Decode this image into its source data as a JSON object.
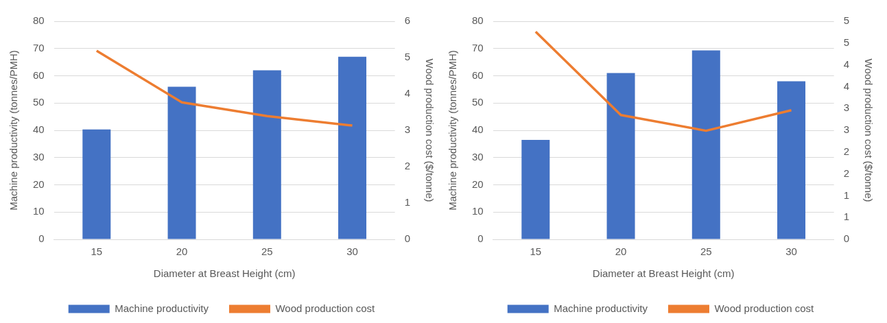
{
  "chart_data": [
    {
      "type": "bar",
      "categories": [
        "15",
        "20",
        "25",
        "30"
      ],
      "xlabel": "Diameter at Breast Height (cm)",
      "ylabel": "Machine productivity (tonnes/PMH)",
      "y2label": "Wood production cost ($/tonne)",
      "series": [
        {
          "name": "Machine productivity",
          "color": "#4472c4",
          "values": [
            40.3,
            56,
            62,
            67
          ]
        },
        {
          "name": "Wood production cost",
          "type": "line",
          "axis": "y2",
          "color": "#ed7d31",
          "values": [
            5.19,
            3.77,
            3.39,
            3.13
          ]
        }
      ],
      "ylim": [
        0,
        80
      ],
      "yticks": [
        0,
        10,
        20,
        30,
        40,
        50,
        60,
        70,
        80
      ],
      "y2lim": [
        0,
        6
      ],
      "y2ticks": [
        0,
        1,
        2,
        3,
        4,
        5,
        6
      ],
      "grid": "y",
      "legend": "bottom",
      "marker": "none"
    },
    {
      "type": "bar",
      "categories": [
        "15",
        "20",
        "25",
        "30"
      ],
      "xlabel": "Diameter at Breast Height (cm)",
      "ylabel": "Machine productivity (tonnes/PMH)",
      "y2label": "Wood production cost ($/tonne)",
      "series": [
        {
          "name": "Machine productivity",
          "color": "#4472c4",
          "values": [
            36.5,
            61,
            69.3,
            58
          ]
        },
        {
          "name": "Wood production cost",
          "type": "line",
          "axis": "y2",
          "color": "#ed7d31",
          "values": [
            4.76,
            2.85,
            2.49,
            2.96
          ]
        }
      ],
      "ylim": [
        0,
        80
      ],
      "yticks": [
        0,
        10,
        20,
        30,
        40,
        50,
        60,
        70,
        80
      ],
      "y2lim": [
        0,
        5
      ],
      "y2ticks": [
        0,
        {
          "value": 0.5,
          "label": "1"
        },
        1,
        {
          "value": 1.5,
          "label": "2"
        },
        2,
        {
          "value": 2.5,
          "label": "3"
        },
        3,
        {
          "value": 3.5,
          "label": "4"
        },
        4,
        {
          "value": 4.5,
          "label": "5"
        },
        5
      ],
      "grid": "y",
      "legend": "bottom",
      "marker": "none"
    }
  ]
}
